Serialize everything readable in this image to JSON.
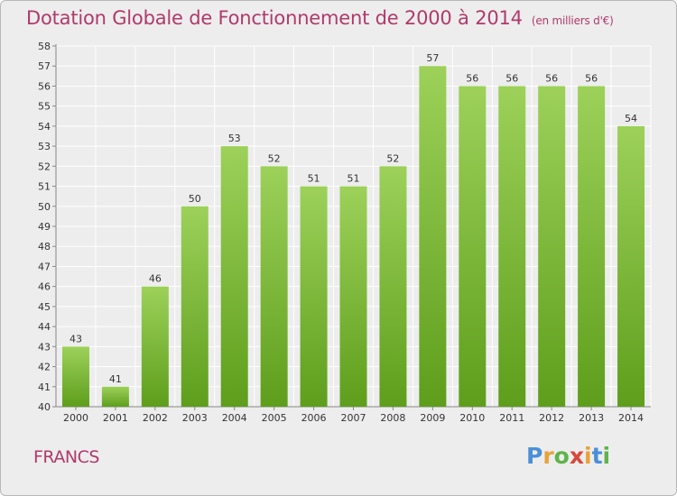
{
  "header": {
    "title": "Dotation Globale de Fonctionnement de 2000 à 2014",
    "unit_note": "(en milliers d'€)"
  },
  "footer": {
    "commune": "FRANCS",
    "logo": "Proxiti"
  },
  "colors": {
    "title": "#b03a6a",
    "bar_top": "#9dd15a",
    "bar_bottom": "#5e9e1c",
    "grid": "#ffffff",
    "background": "#ededed"
  },
  "chart_data": {
    "type": "bar",
    "title": "Dotation Globale de Fonctionnement de 2000 à 2014",
    "subtitle": "(en milliers d'€)",
    "categories": [
      "2000",
      "2001",
      "2002",
      "2003",
      "2004",
      "2005",
      "2006",
      "2007",
      "2008",
      "2009",
      "2010",
      "2011",
      "2012",
      "2013",
      "2014"
    ],
    "values": [
      43,
      41,
      46,
      50,
      53,
      52,
      51,
      51,
      52,
      57,
      56,
      56,
      56,
      56,
      54
    ],
    "xlabel": "",
    "ylabel": "",
    "ylim": [
      40,
      58
    ],
    "yticks": [
      40,
      41,
      42,
      43,
      44,
      45,
      46,
      47,
      48,
      49,
      50,
      51,
      52,
      53,
      54,
      55,
      56,
      57,
      58
    ],
    "grid": true,
    "data_labels": true
  }
}
